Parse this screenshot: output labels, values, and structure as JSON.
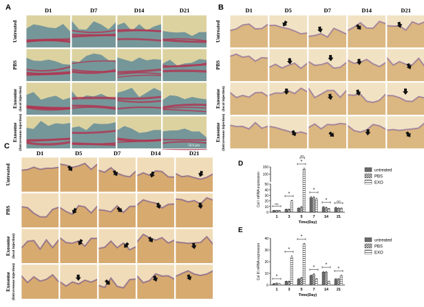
{
  "panels": {
    "A": {
      "letter": "A",
      "columns": [
        "D1",
        "D7",
        "D14",
        "D21"
      ],
      "rows": [
        {
          "label": "Untreated"
        },
        {
          "label": "PBS"
        },
        {
          "label": "Exosome",
          "sub": "(local injection)"
        },
        {
          "label": "Exosome",
          "sub": "(Intravenous injection)"
        }
      ],
      "scale_bar": "50.0 µm",
      "stain_colors": {
        "bg": "#dcd2a0",
        "tissue": "#6a9098",
        "red": "#b23350"
      }
    },
    "B": {
      "letter": "B",
      "columns": [
        "D1",
        "D5",
        "D7",
        "D14",
        "D21"
      ],
      "rows": [
        {
          "label": "Untreated"
        },
        {
          "label": "PBS"
        },
        {
          "label": "Exosome",
          "sub": "(local injection)"
        },
        {
          "label": "Exosome",
          "sub": "(Intravenous injection)"
        }
      ],
      "stain_colors": {
        "bg": "#f1e2c4",
        "tissue": "#d8b27a",
        "edge": "#8a6a9a"
      }
    },
    "C": {
      "letter": "C",
      "columns": [
        "D1",
        "D5",
        "D7",
        "D14",
        "D21"
      ],
      "rows": [
        {
          "label": "Untreated"
        },
        {
          "label": "PBS"
        },
        {
          "label": "Exosome",
          "sub": "(local injection)"
        },
        {
          "label": "Exosome",
          "sub": "(Intravenous injection)"
        }
      ],
      "stain_colors": {
        "bg": "#f0dcb8",
        "tissue": "#d4a468",
        "edge": "#7a5a8a"
      }
    }
  },
  "chart_data": [
    {
      "panel": "D",
      "type": "bar",
      "categories": [
        "1",
        "3",
        "5",
        "7",
        "14",
        "21"
      ],
      "series": [
        {
          "name": "untreated",
          "values": [
            3,
            5,
            7,
            26,
            9,
            8
          ],
          "errors": [
            0.5,
            0.7,
            0.8,
            2,
            1,
            0.8
          ]
        },
        {
          "name": "PBS",
          "values": [
            3,
            5,
            9,
            26,
            8,
            7
          ],
          "errors": [
            0.5,
            0.7,
            1,
            2,
            1,
            0.7
          ]
        },
        {
          "name": "EXO",
          "values": [
            3,
            20,
            135,
            23,
            6,
            7
          ],
          "errors": [
            0.4,
            1.5,
            6,
            2,
            0.8,
            0.7
          ]
        }
      ],
      "xlabel": "Time(Day)",
      "ylabel": "Col I  mRNA expression",
      "yaxis": "broken",
      "yticks": [
        "0",
        "10",
        "20",
        "30",
        "40",
        "50",
        "100",
        "150"
      ],
      "significance": [
        {
          "cat": 0,
          "label": "NS"
        },
        {
          "cat": 1,
          "label": "*"
        },
        {
          "cat": 2,
          "label": "*"
        },
        {
          "cat": 2,
          "label": "NS"
        },
        {
          "cat": 3,
          "label": "*"
        },
        {
          "cat": 4,
          "label": "*"
        },
        {
          "cat": 5,
          "label": "NS"
        }
      ]
    },
    {
      "panel": "E",
      "type": "bar",
      "categories": [
        "1",
        "3",
        "5",
        "7",
        "14",
        "21"
      ],
      "series": [
        {
          "name": "untreated",
          "values": [
            1,
            3,
            5,
            8,
            11,
            5
          ],
          "errors": [
            0.3,
            0.4,
            0.5,
            0.6,
            0.7,
            0.5
          ]
        },
        {
          "name": "PBS",
          "values": [
            1.5,
            3,
            6,
            9,
            11,
            5
          ],
          "errors": [
            0.3,
            0.4,
            0.5,
            0.6,
            0.7,
            0.5
          ]
        },
        {
          "name": "EXO",
          "values": [
            1,
            24,
            35,
            5,
            3,
            8
          ],
          "errors": [
            0.3,
            1,
            0.8,
            0.5,
            0.4,
            0.5
          ]
        }
      ],
      "xlabel": "Time(Day)",
      "ylabel": "Col III  mRNA expression",
      "ylim": [
        0,
        40
      ],
      "yticks": [
        "0",
        "10",
        "20",
        "30",
        "40"
      ],
      "significance": [
        {
          "cat": 0,
          "label": "*"
        },
        {
          "cat": 1,
          "label": "*"
        },
        {
          "cat": 2,
          "label": "*"
        },
        {
          "cat": 3,
          "label": "*"
        },
        {
          "cat": 4,
          "label": "*"
        },
        {
          "cat": 5,
          "label": "*"
        }
      ]
    }
  ]
}
